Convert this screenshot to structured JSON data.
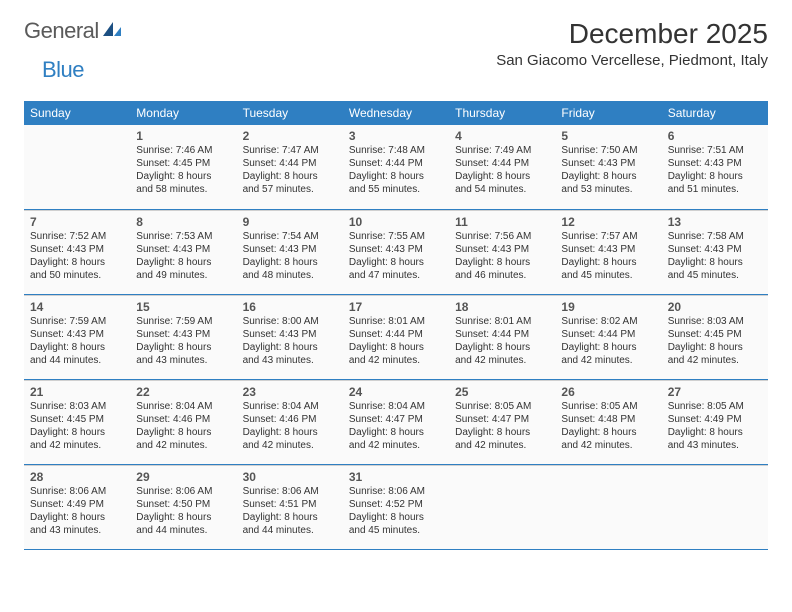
{
  "logo": {
    "text1": "General",
    "text2": "Blue"
  },
  "title": "December 2025",
  "location": "San Giacomo Vercellese, Piedmont, Italy",
  "colors": {
    "header_bg": "#2f7fc2",
    "header_text": "#ffffff",
    "border": "#2f7fc2",
    "cell_bg": "#fafafa",
    "cell_border": "#d0d0d0",
    "text": "#333333",
    "logo_gray": "#5a5a5a",
    "logo_blue": "#2f7fc2"
  },
  "typography": {
    "title_fontsize": 28,
    "location_fontsize": 15,
    "dayname_fontsize": 12,
    "daynum_fontsize": 12,
    "info_fontsize": 10
  },
  "days": [
    "Sunday",
    "Monday",
    "Tuesday",
    "Wednesday",
    "Thursday",
    "Friday",
    "Saturday"
  ],
  "weeks": [
    [
      null,
      {
        "n": "1",
        "sunrise": "7:46 AM",
        "sunset": "4:45 PM",
        "daylight": "8 hours and 58 minutes."
      },
      {
        "n": "2",
        "sunrise": "7:47 AM",
        "sunset": "4:44 PM",
        "daylight": "8 hours and 57 minutes."
      },
      {
        "n": "3",
        "sunrise": "7:48 AM",
        "sunset": "4:44 PM",
        "daylight": "8 hours and 55 minutes."
      },
      {
        "n": "4",
        "sunrise": "7:49 AM",
        "sunset": "4:44 PM",
        "daylight": "8 hours and 54 minutes."
      },
      {
        "n": "5",
        "sunrise": "7:50 AM",
        "sunset": "4:43 PM",
        "daylight": "8 hours and 53 minutes."
      },
      {
        "n": "6",
        "sunrise": "7:51 AM",
        "sunset": "4:43 PM",
        "daylight": "8 hours and 51 minutes."
      }
    ],
    [
      {
        "n": "7",
        "sunrise": "7:52 AM",
        "sunset": "4:43 PM",
        "daylight": "8 hours and 50 minutes."
      },
      {
        "n": "8",
        "sunrise": "7:53 AM",
        "sunset": "4:43 PM",
        "daylight": "8 hours and 49 minutes."
      },
      {
        "n": "9",
        "sunrise": "7:54 AM",
        "sunset": "4:43 PM",
        "daylight": "8 hours and 48 minutes."
      },
      {
        "n": "10",
        "sunrise": "7:55 AM",
        "sunset": "4:43 PM",
        "daylight": "8 hours and 47 minutes."
      },
      {
        "n": "11",
        "sunrise": "7:56 AM",
        "sunset": "4:43 PM",
        "daylight": "8 hours and 46 minutes."
      },
      {
        "n": "12",
        "sunrise": "7:57 AM",
        "sunset": "4:43 PM",
        "daylight": "8 hours and 45 minutes."
      },
      {
        "n": "13",
        "sunrise": "7:58 AM",
        "sunset": "4:43 PM",
        "daylight": "8 hours and 45 minutes."
      }
    ],
    [
      {
        "n": "14",
        "sunrise": "7:59 AM",
        "sunset": "4:43 PM",
        "daylight": "8 hours and 44 minutes."
      },
      {
        "n": "15",
        "sunrise": "7:59 AM",
        "sunset": "4:43 PM",
        "daylight": "8 hours and 43 minutes."
      },
      {
        "n": "16",
        "sunrise": "8:00 AM",
        "sunset": "4:43 PM",
        "daylight": "8 hours and 43 minutes."
      },
      {
        "n": "17",
        "sunrise": "8:01 AM",
        "sunset": "4:44 PM",
        "daylight": "8 hours and 42 minutes."
      },
      {
        "n": "18",
        "sunrise": "8:01 AM",
        "sunset": "4:44 PM",
        "daylight": "8 hours and 42 minutes."
      },
      {
        "n": "19",
        "sunrise": "8:02 AM",
        "sunset": "4:44 PM",
        "daylight": "8 hours and 42 minutes."
      },
      {
        "n": "20",
        "sunrise": "8:03 AM",
        "sunset": "4:45 PM",
        "daylight": "8 hours and 42 minutes."
      }
    ],
    [
      {
        "n": "21",
        "sunrise": "8:03 AM",
        "sunset": "4:45 PM",
        "daylight": "8 hours and 42 minutes."
      },
      {
        "n": "22",
        "sunrise": "8:04 AM",
        "sunset": "4:46 PM",
        "daylight": "8 hours and 42 minutes."
      },
      {
        "n": "23",
        "sunrise": "8:04 AM",
        "sunset": "4:46 PM",
        "daylight": "8 hours and 42 minutes."
      },
      {
        "n": "24",
        "sunrise": "8:04 AM",
        "sunset": "4:47 PM",
        "daylight": "8 hours and 42 minutes."
      },
      {
        "n": "25",
        "sunrise": "8:05 AM",
        "sunset": "4:47 PM",
        "daylight": "8 hours and 42 minutes."
      },
      {
        "n": "26",
        "sunrise": "8:05 AM",
        "sunset": "4:48 PM",
        "daylight": "8 hours and 42 minutes."
      },
      {
        "n": "27",
        "sunrise": "8:05 AM",
        "sunset": "4:49 PM",
        "daylight": "8 hours and 43 minutes."
      }
    ],
    [
      {
        "n": "28",
        "sunrise": "8:06 AM",
        "sunset": "4:49 PM",
        "daylight": "8 hours and 43 minutes."
      },
      {
        "n": "29",
        "sunrise": "8:06 AM",
        "sunset": "4:50 PM",
        "daylight": "8 hours and 44 minutes."
      },
      {
        "n": "30",
        "sunrise": "8:06 AM",
        "sunset": "4:51 PM",
        "daylight": "8 hours and 44 minutes."
      },
      {
        "n": "31",
        "sunrise": "8:06 AM",
        "sunset": "4:52 PM",
        "daylight": "8 hours and 45 minutes."
      },
      null,
      null,
      null
    ]
  ],
  "labels": {
    "sunrise": "Sunrise:",
    "sunset": "Sunset:",
    "daylight": "Daylight:"
  }
}
